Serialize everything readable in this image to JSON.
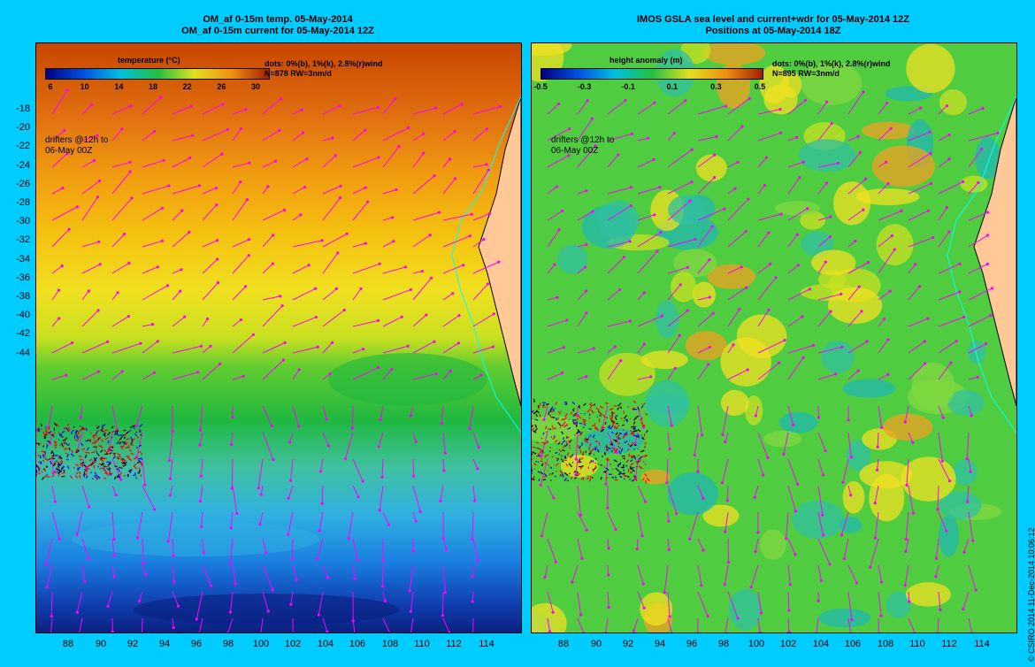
{
  "left_panel": {
    "title_line1": "OM_af 0-15m temp. 05-May-2014",
    "title_line2": "OM_af 0-15m current for 05-May-2014 12Z",
    "colorbar_label": "temperature (°C)",
    "colorbar_ticks": [
      "6",
      "10",
      "14",
      "18",
      "22",
      "26",
      "30"
    ],
    "dots_note_line1": "dots: 0%(b), 1%(k), 2.8%(r)wind",
    "dots_note_line2": "N=878 RW=3nm/d",
    "drifters_line1": "drifters @12h to",
    "drifters_line2": "06-May 00Z"
  },
  "right_panel": {
    "title_line1": "IMOS GSLA sea level and current+wdr for 05-May-2014 12Z",
    "title_line2": "Positions at 05-May-2014 18Z",
    "colorbar_label": "height anomaly (m)",
    "colorbar_ticks": [
      "-0.5",
      "-0.3",
      "-0.1",
      "0.1",
      "0.3",
      "0.5"
    ],
    "dots_note_line1": "dots: 0%(b), 1%(k), 2.8%(r)wind",
    "dots_note_line2": "N=895 RW=3nm/d",
    "drifters_line1": "drifters @12h to",
    "drifters_line2": "06-May 00Z"
  },
  "y_axis_labels": [
    "-18",
    "-20",
    "-22",
    "-24",
    "-26",
    "-28",
    "-30",
    "-32",
    "-34",
    "-36",
    "-38",
    "-40",
    "-42",
    "-44"
  ],
  "x_axis_labels": [
    "88",
    "90",
    "92",
    "94",
    "96",
    "98",
    "100",
    "102",
    "104",
    "106",
    "108",
    "110",
    "112",
    "114"
  ],
  "credit": "© CSIRO 2014   11-Dec-2014 10:06:12",
  "colors": {
    "background": "#00ccff",
    "vector": "#ff00ff",
    "coast": "#00ffff",
    "land": "#ffc896",
    "drifter_red": "#ff0000",
    "drifter_black": "#000000",
    "drifter_blue": "#0000ff"
  }
}
